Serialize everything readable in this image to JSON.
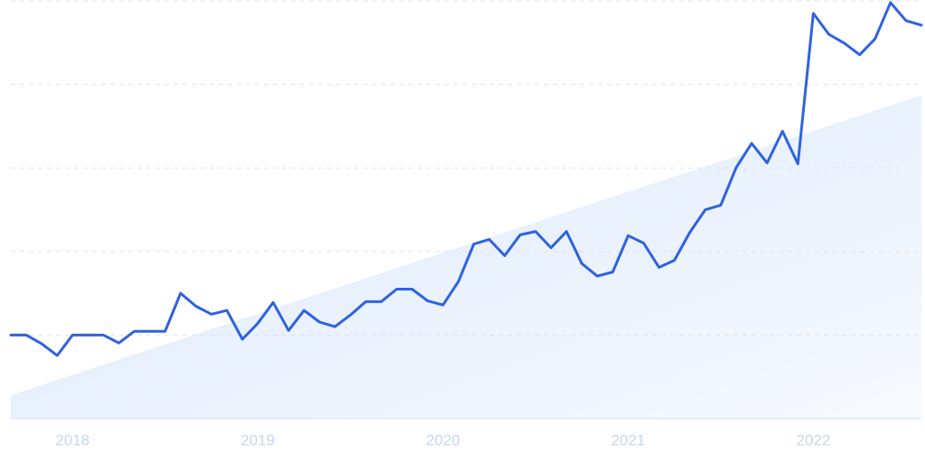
{
  "chart_data": {
    "type": "line",
    "categories": [
      null,
      null,
      null,
      null,
      "2018",
      null,
      null,
      null,
      null,
      null,
      null,
      null,
      null,
      null,
      null,
      null,
      "2019",
      null,
      null,
      null,
      null,
      null,
      null,
      null,
      null,
      null,
      null,
      null,
      "2020",
      null,
      null,
      null,
      null,
      null,
      null,
      null,
      null,
      null,
      null,
      null,
      "2021",
      null,
      null,
      null,
      null,
      null,
      null,
      null,
      null,
      null,
      null,
      null,
      "2022",
      null,
      null,
      null,
      null,
      null,
      null,
      null
    ],
    "series": [
      {
        "color": "#2f62e0",
        "values": [
          20.0,
          20.0,
          17.9,
          15.1,
          20.0,
          20.0,
          20.0,
          18.1,
          20.9,
          20.9,
          20.9,
          30.0,
          26.9,
          25.0,
          25.9,
          19.0,
          22.8,
          27.8,
          21.1,
          25.9,
          23.1,
          22.0,
          24.8,
          28.0,
          28.0,
          31.0,
          31.0,
          28.2,
          27.2,
          32.8,
          41.8,
          42.9,
          39.0,
          44.0,
          44.8,
          40.9,
          44.8,
          37.1,
          34.1,
          35.1,
          43.8,
          42.0,
          36.2,
          37.9,
          44.6,
          50.0,
          51.1,
          60.1,
          65.9,
          61.2,
          68.8,
          61.0,
          97.0,
          92.0,
          89.9,
          87.1,
          90.9,
          99.6,
          95.3,
          94.2
        ]
      }
    ],
    "trend": [
      5.6,
      77.4
    ],
    "ylim": [
      0,
      100
    ],
    "yticks": [
      0,
      20,
      40,
      60,
      80,
      100
    ],
    "grid": true
  }
}
